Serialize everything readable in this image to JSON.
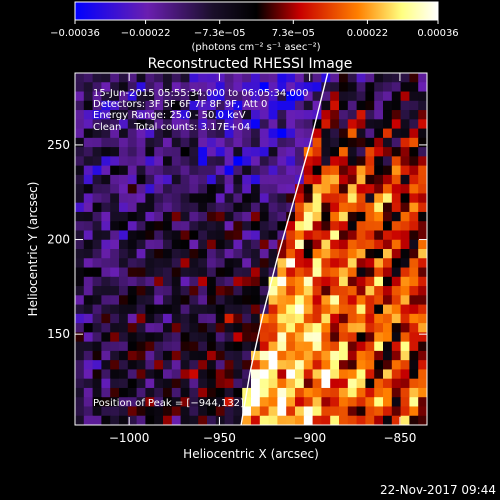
{
  "chart_data": {
    "type": "heatmap",
    "title": "Reconstructed RHESSI Image",
    "xlabel": "Heliocentric X (arcsec)",
    "ylabel": "Heliocentric Y (arcsec)",
    "xlim": [
      -1030,
      -835
    ],
    "ylim": [
      102,
      288
    ],
    "x_ticks": [
      -1000,
      -950,
      -900,
      -850
    ],
    "x_tick_labels": [
      "−1000",
      "−950",
      "−900",
      "−850"
    ],
    "y_ticks": [
      150,
      200,
      250
    ],
    "y_tick_labels": [
      "150",
      "200",
      "250"
    ],
    "colorbar": {
      "min": -0.00036,
      "max": 0.00036,
      "ticks": [
        -0.00036,
        -0.00022,
        -7.3e-05,
        7.3e-05,
        0.00022,
        0.00036
      ],
      "tick_labels": [
        "−0.00036",
        "−0.00022",
        "−7.3e−05",
        "7.3e−05",
        "0.00022",
        "0.00036"
      ],
      "units_text": "(photons cm⁻² s⁻¹ asec⁻²)",
      "colors": [
        "#0000ff",
        "#6a1fb0",
        "#1a0f2a",
        "#000000",
        "#c80000",
        "#ff8000",
        "#ffff80",
        "#ffffff"
      ]
    },
    "info_lines": [
      "15-Jun-2015 05:55:34.000 to 06:05:34.000",
      "Detectors: 3F 5F 6F 7F 8F 9F, Att 0",
      "Energy Range: 25.0 - 50.0 keV",
      "Clean    Total counts: 3.17E+04"
    ],
    "peak_label": "Position of Peak = [−944,132]",
    "peak": [
      -944,
      132
    ],
    "limb_curve": [
      [
        -938,
        102
      ],
      [
        -933,
        130
      ],
      [
        -926,
        160
      ],
      [
        -918,
        190
      ],
      [
        -909,
        220
      ],
      [
        -900,
        250
      ],
      [
        -890,
        288
      ]
    ],
    "image_grid": {
      "nx": 40,
      "ny": 38,
      "pattern": "bright emission lower-right of limb, peaking near [-944,132]; purple/blue noise above-left"
    }
  },
  "footer": {
    "timestamp": "22-Nov-2017 09:44"
  }
}
